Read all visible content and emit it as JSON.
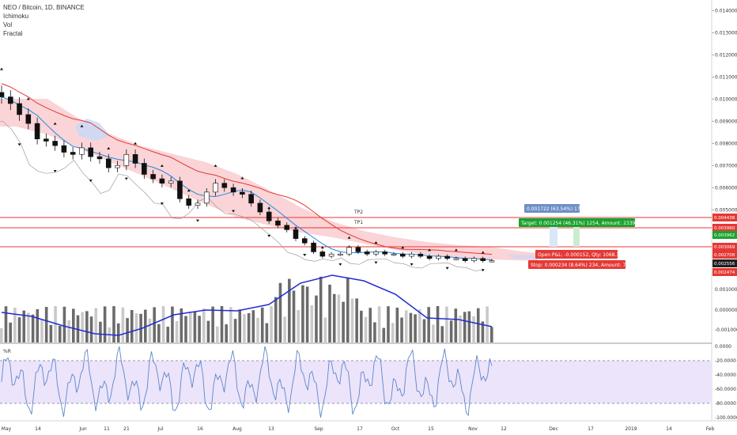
{
  "header": {
    "symbol": "NEO / Bitcoin, 1D, BINANCE",
    "indicators": [
      "Ichimoku",
      "Vol",
      "Fractal"
    ]
  },
  "colors": {
    "ema_red": "#e53935",
    "ema_blue": "#1e88e5",
    "cloud": "#f8c5c8",
    "cloud_blue": "#c7d8f7",
    "vol_ma": "#1f2ed1",
    "wr": "#5c86c9",
    "wr_band": "#ece4fb",
    "level_line": "#e53935",
    "tag_red": "#e53935",
    "tag_green": "#19a32f",
    "tag_blue": "#6d8fc6",
    "candle_dark": "#111111",
    "candle_light": "#ffffff"
  },
  "chart_data": {
    "type": "candlestick",
    "price_axis": {
      "ticks": [
        "0.014000",
        "0.013000",
        "0.012000",
        "0.011000",
        "0.010000",
        "0.009000",
        "0.008000",
        "0.007000",
        "0.006000",
        "0.005000"
      ],
      "ylim": [
        0.0019,
        0.0143
      ]
    },
    "levels": [
      {
        "name": "TP2",
        "price": 0.004438,
        "label": "0.004438"
      },
      {
        "name": "TP1",
        "price": 0.00396,
        "label": "0.003960"
      },
      {
        "name": "",
        "price": 0.003069,
        "label": "0.003069"
      }
    ],
    "price_tags": [
      {
        "label": "0.003962",
        "color": "green"
      },
      {
        "label": "0.002708",
        "color": "red"
      },
      {
        "label": "0.002556",
        "color": "dark"
      },
      {
        "label": "0.002474",
        "color": "red"
      }
    ],
    "position": {
      "target_label": "Target: 0.001254 (46.31%) 1254, Amount: 2339.74",
      "pnl_label": "Open P&L: -0.000152, Qty: 1068.376",
      "stop_label": "Stop: 0.000234 (8.64%) 234, Amount: 750",
      "range_label": "0.001722 (63.54%) 1722"
    },
    "volume_axis": {
      "ticks": [
        "0.001000",
        "0.000000",
        "-0.001000"
      ]
    },
    "wr_panel": {
      "title": "%R",
      "ticks": [
        "0.0000",
        "-20.0000",
        "-40.0000",
        "-60.0000",
        "-80.0000",
        "-100.0000"
      ],
      "upper": -20,
      "lower": -80
    },
    "x_axis": {
      "ticks": [
        "May",
        "14",
        "Jun",
        "11",
        "21",
        "Jul",
        "16",
        "Aug",
        "13",
        "Sep",
        "17",
        "Oct",
        "15",
        "Nov",
        "12",
        "Dec",
        "17",
        "2019",
        "14",
        "Feb"
      ]
    },
    "close_prices": [
      0.0101,
      0.0098,
      0.0093,
      0.0089,
      0.0082,
      0.0081,
      0.0079,
      0.0076,
      0.0075,
      0.0078,
      0.0074,
      0.0073,
      0.0069,
      0.007,
      0.0075,
      0.0071,
      0.0066,
      0.0064,
      0.0062,
      0.0063,
      0.0055,
      0.0052,
      0.0053,
      0.0058,
      0.0062,
      0.006,
      0.0058,
      0.0057,
      0.0053,
      0.0049,
      0.0045,
      0.0043,
      0.0041,
      0.0037,
      0.0035,
      0.0031,
      0.0029,
      0.003,
      0.003,
      0.0033,
      0.0031,
      0.003,
      0.0031,
      0.003,
      0.003,
      0.0029,
      0.003,
      0.0029,
      0.0028,
      0.0029,
      0.0028,
      0.0028,
      0.0027,
      0.0028,
      0.0027,
      0.0027
    ]
  }
}
